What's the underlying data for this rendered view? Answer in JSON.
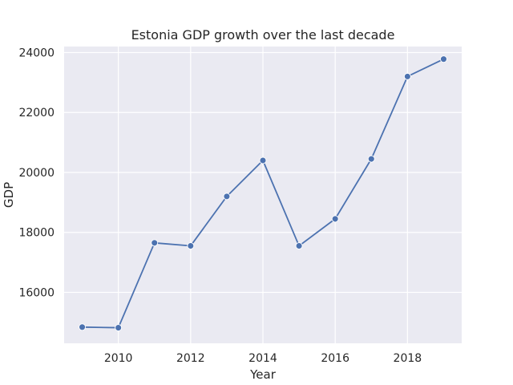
{
  "chart_data": {
    "type": "line",
    "title": "Estonia GDP growth over the last decade",
    "xlabel": "Year",
    "ylabel": "GDP",
    "x": [
      2009,
      2010,
      2011,
      2012,
      2013,
      2014,
      2015,
      2016,
      2017,
      2018,
      2019
    ],
    "series": [
      {
        "name": "",
        "values": [
          14840,
          14820,
          17650,
          17550,
          19200,
          20400,
          17550,
          18450,
          20450,
          23200,
          23780
        ],
        "color": "#4c72b0"
      }
    ],
    "xlim": [
      2008.5,
      2019.5
    ],
    "ylim": [
      14300,
      24200
    ],
    "xticks": [
      2010,
      2012,
      2014,
      2016,
      2018
    ],
    "yticks": [
      16000,
      18000,
      20000,
      22000,
      24000
    ],
    "xtick_labels": [
      "2010",
      "2012",
      "2014",
      "2016",
      "2018"
    ],
    "ytick_labels": [
      "16000",
      "18000",
      "20000",
      "22000",
      "24000"
    ],
    "grid": true,
    "background": "#eaeaf2",
    "grid_color": "#ffffff",
    "marker": "circle"
  }
}
